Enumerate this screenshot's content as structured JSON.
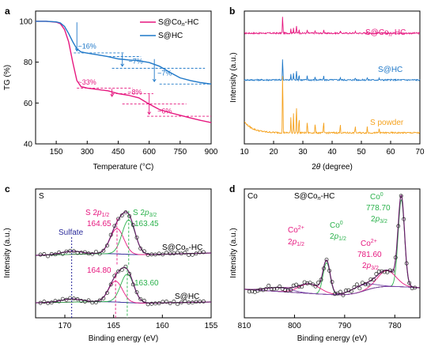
{
  "chart_data": [
    {
      "panel": "a",
      "type": "line",
      "xlabel": "Temperature (°C)",
      "ylabel": "TG (%)",
      "xlim": [
        50,
        900
      ],
      "ylim": [
        40,
        105
      ],
      "xticks": [
        150,
        300,
        450,
        600,
        750,
        900
      ],
      "yticks": [
        40,
        60,
        80,
        100
      ],
      "legend": [
        "S@Co_n-HC",
        "S@HC"
      ],
      "colors": {
        "s_co_hc": "#e6177f",
        "s_hc": "#1f78c8"
      },
      "series": [
        {
          "name": "S@Co_n-HC",
          "x": [
            50,
            100,
            150,
            170,
            190,
            210,
            230,
            250,
            270,
            300,
            350,
            400,
            450,
            500,
            550,
            600,
            650,
            700,
            750,
            800,
            850,
            900
          ],
          "y": [
            100,
            100,
            99.6,
            98.8,
            96,
            90,
            80,
            71,
            68,
            67.3,
            66.6,
            66,
            64.6,
            63.8,
            62.5,
            59.5,
            56.8,
            55.3,
            54,
            52.7,
            51.5,
            50.4
          ]
        },
        {
          "name": "S@HC",
          "x": [
            50,
            100,
            150,
            170,
            190,
            210,
            230,
            250,
            270,
            300,
            350,
            400,
            450,
            500,
            550,
            600,
            650,
            700,
            750,
            800,
            850,
            900
          ],
          "y": [
            100,
            100,
            99.7,
            99.2,
            97.5,
            94,
            90,
            86.5,
            85,
            84.4,
            83.6,
            82.7,
            81.6,
            81.1,
            80.7,
            79.8,
            78,
            75,
            72.3,
            71,
            70,
            69.3
          ]
        }
      ],
      "annotations": [
        {
          "text": "~16%",
          "x": 280,
          "y": 86.5
        },
        {
          "text": "~7%",
          "x": 500,
          "y": 79.5
        },
        {
          "text": "~7%",
          "x": 645,
          "y": 74
        },
        {
          "text": "~33%",
          "x": 255,
          "y": 69
        },
        {
          "text": "~8%",
          "x": 500,
          "y": 64.5
        },
        {
          "text": "~6%",
          "x": 640,
          "y": 54.5
        }
      ]
    },
    {
      "panel": "b",
      "type": "line",
      "xlabel": "2θ (degree)",
      "ylabel": "Intensity (a.u.)",
      "xlim": [
        10,
        70
      ],
      "xticks": [
        10,
        20,
        30,
        40,
        50,
        60,
        70
      ],
      "series_labels": [
        "S@Co_n-HC",
        "S@HC",
        "S powder"
      ],
      "colors": {
        "s_co_hc": "#e6177f",
        "s_hc": "#1f78c8",
        "s_powder": "#f5a21e"
      },
      "offsets": [
        9,
        5.2,
        0.9
      ],
      "peaks": [
        [
          23.1,
          5.5
        ],
        [
          25.9,
          1.2
        ],
        [
          26.8,
          1.6
        ],
        [
          27.8,
          2.4
        ],
        [
          28.7,
          1.3
        ],
        [
          31.5,
          1.0
        ],
        [
          34.2,
          0.8
        ],
        [
          37.1,
          0.9
        ],
        [
          42.8,
          0.7
        ],
        [
          47.9,
          0.6
        ],
        [
          52.0,
          0.5
        ],
        [
          56.1,
          0.4
        ]
      ]
    },
    {
      "panel": "c",
      "type": "line",
      "element": "S",
      "xlabel": "Binding energy (eV)",
      "ylabel": "Intensity (a.u.)",
      "xlim": [
        173,
        155
      ],
      "xticks": [
        170,
        165,
        160,
        155
      ],
      "peak_labels": {
        "s2p12": "S 2p1/2",
        "s2p32": "S 2p3/2",
        "sulfate": "Sulfate"
      },
      "upper": {
        "name": "S@Co_n-HC",
        "p12": 164.65,
        "p32": 163.45
      },
      "lower": {
        "name": "S@HC",
        "p12": 164.8,
        "p32": 163.6
      },
      "sulfate": 169.3
    },
    {
      "panel": "d",
      "type": "line",
      "element": "Co",
      "sample": "S@Co_n-HC",
      "xlabel": "Binding energy (eV)",
      "ylabel": "Intensity (a.u.)",
      "xlim": [
        810,
        775
      ],
      "xticks": [
        810,
        800,
        790,
        780
      ],
      "labels": [
        {
          "text": "Co0",
          "sub": "2p1/2",
          "x": 793
        },
        {
          "text": "Co2+",
          "sub": "2p1/2",
          "x": 796.5
        },
        {
          "text": "Co0",
          "value": "778.70",
          "sub": "2p3/2",
          "x": 778.7
        },
        {
          "text": "Co2+",
          "value": "781.60",
          "sub": "2p3/2",
          "x": 781.6
        }
      ]
    }
  ],
  "text": {
    "a": {
      "panel": "a",
      "xlabel": "Temperature (°C)",
      "ylabel": "TG (%)",
      "leg1": "S@Co",
      "leg1_sub": "n",
      "leg1_end": "-HC",
      "leg2": "S@HC",
      "ann1": "~16%",
      "ann2": "~7%",
      "ann3": "~7%",
      "ann4": "~33%",
      "ann5": "~8%",
      "ann6": "~6%"
    },
    "b": {
      "panel": "b",
      "xlabel_pre": "2",
      "xlabel_theta": "θ",
      "xlabel_post": " (degree)",
      "ylabel": "Intensity (a.u.)",
      "l1": "S@Co",
      "l1_sub": "n",
      "l1_end": "-HC",
      "l2": "S@HC",
      "l3": "S powder"
    },
    "c": {
      "panel": "c",
      "elem": "S",
      "xlabel": "Binding energy (eV)",
      "ylabel": "Intensity (a.u.)",
      "p12_main": "S 2",
      "p12_it": "p",
      "p12_sub": "1/2",
      "p32_main": "S 2",
      "p32_it": "p",
      "p32_sub": "3/2",
      "v1": "164.65",
      "v2": "163.45",
      "v3": "164.80",
      "v4": "163.60",
      "sulfate": "Sulfate",
      "s1": "S@Co",
      "s1_sub": "n",
      "s1_end": "-HC",
      "s2": "S@HC"
    },
    "d": {
      "panel": "d",
      "elem": "Co",
      "xlabel": "Binding energy (eV)",
      "ylabel": "Intensity (a.u.)",
      "sample": "S@Co",
      "sample_sub": "n",
      "sample_end": "-HC",
      "co0a": "Co",
      "co0a_sup": "0",
      "co0a_2": "2",
      "co0a_p": "p",
      "co0a_sub": "1/2",
      "co2a": "Co",
      "co2a_sup": "2+",
      "co2a_2": "2",
      "co2a_p": "p",
      "co2a_sub": "1/2",
      "co0b": "Co",
      "co0b_sup": "0",
      "co0b_v": "778.70",
      "co0b_2": "2",
      "co0b_p": "p",
      "co0b_sub": "3/2",
      "co2b": "Co",
      "co2b_sup": "2+",
      "co2b_v": "781.60",
      "co2b_2": "2",
      "co2b_p": "p",
      "co2b_sub": "3/2"
    }
  }
}
